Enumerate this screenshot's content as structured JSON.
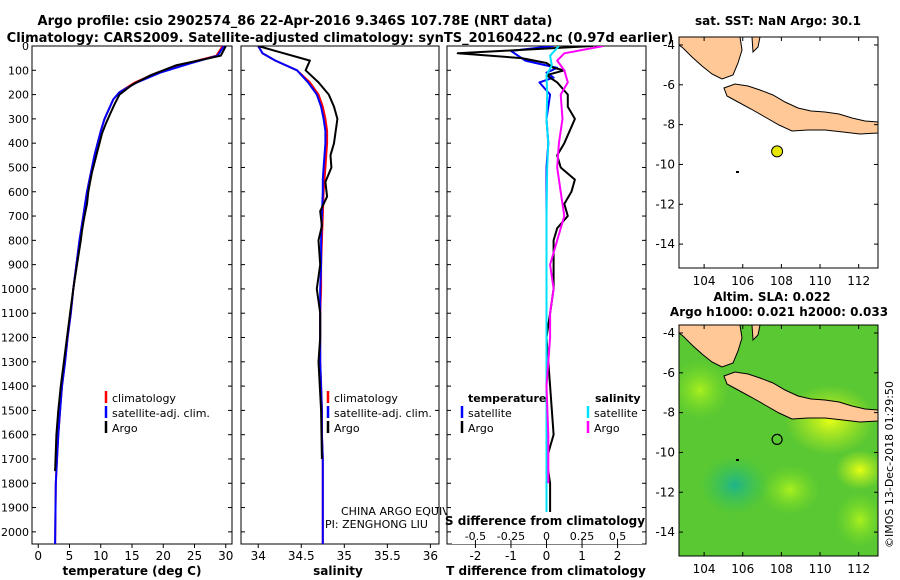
{
  "header": {
    "line1": "Argo profile: csio 2902574_86 22-Apr-2016 9.346S 107.78E (NRT data)",
    "line2": "Climatology: CARS2009. Satellite-adjusted climatology: synTS_20160422.nc (0.97d earlier)"
  },
  "colors": {
    "climatology": "#ff0000",
    "satellite": "#0000ff",
    "argo": "#000000",
    "s_satellite": "#00e0ff",
    "s_argo": "#ff00ff",
    "land": "#ffc896",
    "dot": "#e6e600"
  },
  "watermark": "©IMOS 13-Dec-2018 01:29:50",
  "chart_data": [
    {
      "type": "line",
      "id": "temperature",
      "xlabel": "temperature (deg C)",
      "xticks": [
        0,
        5,
        10,
        15,
        20,
        25,
        30
      ],
      "xlim": [
        -1,
        31
      ],
      "ylim": [
        2050,
        0
      ],
      "yticks": [
        0,
        100,
        200,
        300,
        400,
        500,
        600,
        700,
        800,
        900,
        1000,
        1100,
        1200,
        1300,
        1400,
        1500,
        1600,
        1700,
        1800,
        1900,
        2000
      ],
      "ytick_labels": [
        "0",
        "100",
        "200",
        "300",
        "400",
        "500",
        "600",
        "700",
        "800",
        "900",
        "1000",
        "1100",
        "1200",
        "1300",
        "1400",
        "1500",
        "1600",
        "1700",
        "1800",
        "1900",
        "2000"
      ],
      "legend": [
        "climatology",
        "satellite-adj. clim.",
        "Argo"
      ],
      "series": [
        {
          "name": "climatology",
          "color": "#ff0000",
          "x": [
            29.5,
            29,
            28.5,
            24,
            19,
            15.5,
            13,
            12,
            11.3,
            10.6,
            10,
            9.5,
            9,
            8.6,
            8.2,
            7.8,
            7.5,
            7.2,
            6.9,
            6.6,
            6.1,
            5.6,
            5.2,
            4.7,
            4.3,
            3.8,
            3.5,
            3.2,
            3.0,
            2.8,
            2.7
          ],
          "y": [
            0,
            20,
            40,
            70,
            110,
            150,
            190,
            220,
            260,
            300,
            350,
            400,
            450,
            500,
            550,
            600,
            650,
            700,
            750,
            800,
            900,
            1000,
            1100,
            1200,
            1300,
            1400,
            1500,
            1600,
            1700,
            1800,
            2050
          ]
        },
        {
          "name": "satellite",
          "color": "#0000ff",
          "x": [
            29.7,
            29.2,
            28.7,
            24.5,
            19.5,
            15.8,
            13,
            12,
            11.3,
            10.6,
            10,
            9.5,
            9,
            8.6,
            8.2,
            7.8,
            7.5,
            7.2,
            6.9,
            6.6,
            6.1,
            5.6,
            5.2,
            4.7,
            4.3,
            3.8,
            3.5,
            3.2,
            3.0,
            2.8,
            2.7
          ],
          "y": [
            0,
            20,
            40,
            70,
            110,
            150,
            190,
            220,
            260,
            300,
            350,
            400,
            450,
            500,
            550,
            600,
            650,
            700,
            750,
            800,
            900,
            1000,
            1100,
            1200,
            1300,
            1400,
            1500,
            1600,
            1700,
            1800,
            2050
          ]
        },
        {
          "name": "Argo",
          "color": "#000000",
          "x": [
            30,
            29.6,
            29.2,
            22,
            18,
            15,
            13,
            12.2,
            11.5,
            10.8,
            10.2,
            9.8,
            9.4,
            9,
            8.6,
            8.3,
            8,
            7.8,
            7.4,
            7,
            6.8,
            6.2,
            5.6,
            5.1,
            4.6,
            4.1,
            3.6,
            3.2,
            2.9,
            2.7
          ],
          "y": [
            0,
            20,
            40,
            80,
            120,
            160,
            200,
            240,
            280,
            320,
            360,
            400,
            440,
            480,
            520,
            560,
            600,
            650,
            700,
            760,
            800,
            900,
            1000,
            1100,
            1200,
            1300,
            1400,
            1500,
            1600,
            1750
          ]
        }
      ]
    },
    {
      "type": "line",
      "id": "salinity",
      "xlabel": "salinity",
      "xticks": [
        34,
        34.5,
        35,
        35.5,
        36
      ],
      "xlim": [
        33.8,
        36.1
      ],
      "ylim": [
        2050,
        0
      ],
      "legend": [
        "climatology",
        "satellite-adj. clim.",
        "Argo"
      ],
      "annotation": [
        "CHINA ARGO EQUIVALENT",
        "PI: ZENGHONG LIU"
      ],
      "series": [
        {
          "name": "climatology",
          "color": "#ff0000",
          "x": [
            34.0,
            34.05,
            34.2,
            34.45,
            34.6,
            34.7,
            34.75,
            34.78,
            34.8,
            34.8,
            34.79,
            34.78,
            34.77,
            34.76,
            34.75,
            34.74,
            34.73,
            34.73,
            34.72,
            34.72,
            34.72,
            34.73,
            34.74,
            34.74,
            34.75,
            34.75,
            34.75
          ],
          "y": [
            0,
            30,
            60,
            100,
            150,
            200,
            250,
            300,
            350,
            400,
            450,
            500,
            550,
            600,
            700,
            800,
            900,
            1000,
            1100,
            1200,
            1300,
            1400,
            1500,
            1600,
            1700,
            1800,
            2050
          ]
        },
        {
          "name": "satellite",
          "color": "#0000ff",
          "x": [
            34.0,
            34.05,
            34.2,
            34.45,
            34.58,
            34.68,
            34.73,
            34.76,
            34.78,
            34.78,
            34.77,
            34.76,
            34.75,
            34.75,
            34.74,
            34.73,
            34.73,
            34.72,
            34.72,
            34.72,
            34.72,
            34.73,
            34.74,
            34.74,
            34.75,
            34.75,
            34.75
          ],
          "y": [
            0,
            30,
            60,
            100,
            150,
            200,
            250,
            300,
            350,
            400,
            450,
            500,
            550,
            600,
            700,
            800,
            900,
            1000,
            1100,
            1200,
            1300,
            1400,
            1500,
            1600,
            1700,
            1800,
            2050
          ]
        },
        {
          "name": "Argo",
          "color": "#000000",
          "x": [
            34.0,
            34.2,
            34.6,
            34.55,
            34.7,
            34.82,
            34.88,
            34.92,
            34.9,
            34.88,
            34.84,
            34.85,
            34.78,
            34.8,
            34.72,
            34.74,
            34.7,
            34.72,
            34.68,
            34.72,
            34.72,
            34.7,
            34.73,
            34.74
          ],
          "y": [
            0,
            20,
            60,
            100,
            150,
            200,
            250,
            300,
            350,
            400,
            450,
            500,
            560,
            620,
            680,
            740,
            800,
            900,
            1000,
            1100,
            1200,
            1300,
            1500,
            1700
          ]
        }
      ]
    },
    {
      "type": "line",
      "id": "difference",
      "xlabel": "T difference from climatology",
      "xticks": [
        -2,
        -1,
        0,
        1,
        2
      ],
      "xlim": [
        -2.8,
        2.8
      ],
      "top_xlabel": "S difference from climatology",
      "top_xticks": [
        -0.5,
        -0.25,
        0,
        0.25,
        0.5
      ],
      "top_xticklabels": [
        "-0.5",
        "-0.25",
        "0",
        "0.25",
        "0.5"
      ],
      "ylim": [
        2050,
        0
      ],
      "legend_left_title": "temperature",
      "legend_right_title": "salinity",
      "legend_left": [
        "satellite",
        "Argo"
      ],
      "legend_right": [
        "satellite",
        "Argo"
      ],
      "series": [
        {
          "name": "T satellite",
          "color": "#0000ff",
          "x": [
            0.2,
            -1.0,
            -0.6,
            0.3,
            0,
            0.2,
            -0.2,
            0.1,
            0,
            0.05,
            0,
            0,
            0,
            0,
            0,
            0
          ],
          "y": [
            0,
            20,
            60,
            90,
            110,
            130,
            150,
            200,
            300,
            400,
            500,
            800,
            1100,
            1400,
            1700,
            2050
          ]
        },
        {
          "name": "T Argo",
          "color": "#000000",
          "x": [
            1.3,
            -2.5,
            -0.7,
            0,
            0.2,
            0.5,
            0,
            0.3,
            0.6,
            0.6,
            0.8,
            0.5,
            0.3,
            0.4,
            0.8,
            0.7,
            0.5,
            0.6,
            0.3,
            0.2,
            0.2,
            0.2,
            0.1,
            0,
            0.1,
            0.2,
            0,
            0.1,
            0.1
          ],
          "y": [
            0,
            30,
            50,
            70,
            90,
            100,
            120,
            150,
            200,
            250,
            300,
            400,
            450,
            500,
            550,
            600,
            650,
            700,
            750,
            800,
            900,
            1000,
            1100,
            1200,
            1400,
            1600,
            1700,
            1800,
            1950
          ]
        },
        {
          "name": "S satellite",
          "color": "#00e0ff",
          "x": [
            0.35,
            0.1,
            0.15,
            0.0,
            0.02,
            0.0,
            0.05,
            0.02,
            0,
            0,
            0,
            0,
            0
          ],
          "y": [
            0,
            40,
            80,
            120,
            200,
            300,
            400,
            500,
            700,
            1000,
            1400,
            1800,
            2050
          ]
        },
        {
          "name": "S Argo",
          "color": "#ff00ff",
          "x": [
            1.6,
            0.5,
            0.3,
            0.5,
            0.6,
            0.4,
            0.45,
            0.35,
            0.3,
            0.4,
            0.5,
            0.3,
            0.1,
            0.2,
            0.1,
            0.1,
            0.05,
            0.0,
            0.05,
            0.05
          ],
          "y": [
            0,
            30,
            60,
            100,
            150,
            200,
            300,
            400,
            500,
            600,
            700,
            800,
            900,
            1000,
            1100,
            1200,
            1300,
            1400,
            1600,
            1800
          ]
        }
      ]
    },
    {
      "type": "map",
      "id": "sst-map",
      "title": "sat. SST: NaN Argo: 30.1",
      "xticks": [
        104,
        106,
        108,
        110,
        112
      ],
      "yticks": [
        -4,
        -6,
        -8,
        -10,
        -12,
        -14
      ],
      "xlim": [
        102.7,
        113.0
      ],
      "ylim": [
        -15.2,
        -3.6
      ],
      "profile_location": {
        "lon": 107.78,
        "lat": -9.346
      }
    },
    {
      "type": "map",
      "id": "sla-map",
      "title_line1": "Altim. SLA: 0.022",
      "title_line2": "Argo h1000: 0.021 h2000: 0.033",
      "xticks": [
        104,
        106,
        108,
        110,
        112
      ],
      "yticks": [
        -4,
        -6,
        -8,
        -10,
        -12,
        -14
      ],
      "xlim": [
        102.7,
        113.0
      ],
      "ylim": [
        -15.2,
        -3.6
      ],
      "profile_location": {
        "lon": 107.78,
        "lat": -9.346
      }
    }
  ]
}
